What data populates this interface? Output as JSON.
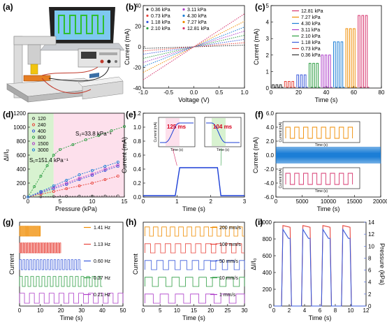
{
  "panels": {
    "a": {
      "label": "(a)"
    },
    "b": {
      "label": "(b)"
    },
    "c": {
      "label": "(c)"
    },
    "d": {
      "label": "(d)"
    },
    "e": {
      "label": "(e)"
    },
    "f": {
      "label": "(f)"
    },
    "g": {
      "label": "(g)"
    },
    "h": {
      "label": "(h)"
    },
    "i": {
      "label": "(i)"
    }
  },
  "chart_data": [
    {
      "id": "b",
      "type": "line",
      "xlabel": "Voltage (V)",
      "ylabel": "Current (mA)",
      "xlim": [
        -1.0,
        1.0
      ],
      "ylim": [
        -50,
        50
      ],
      "xticks": [
        "-1.0",
        "-0.5",
        "0.0",
        "0.5",
        "1.0"
      ],
      "yticks": [
        "-40",
        "-20",
        "0",
        "20",
        "40"
      ],
      "series": [
        {
          "name": "0.36 kPa",
          "color": "#333333",
          "slope": 2
        },
        {
          "name": "0.73 kPa",
          "color": "#e8453c",
          "slope": 5
        },
        {
          "name": "1.18 kPa",
          "color": "#3b5bdb",
          "slope": 9
        },
        {
          "name": "2.10 kPa",
          "color": "#2f9e44",
          "slope": 14
        },
        {
          "name": "3.11 kPa",
          "color": "#ae3ec9",
          "slope": 19
        },
        {
          "name": "4.30 kPa",
          "color": "#1c7ed6",
          "slope": 24
        },
        {
          "name": "7.27 kPa",
          "color": "#f08c00",
          "slope": 31
        },
        {
          "name": "12.81 kPa",
          "color": "#d6336c",
          "slope": 40
        }
      ]
    },
    {
      "id": "c",
      "type": "line",
      "xlabel": "Time (s)",
      "ylabel": "Current (mA)",
      "xlim": [
        0,
        90
      ],
      "ylim": [
        0,
        5
      ],
      "xticks": [
        "0",
        "20",
        "40",
        "60",
        "80"
      ],
      "yticks": [
        "0",
        "1",
        "2",
        "3",
        "4",
        "5"
      ],
      "series": [
        {
          "name": "0.36 kPa",
          "color": "#333333",
          "level": 0.2,
          "start": 1
        },
        {
          "name": "0.73 kPa",
          "color": "#e8453c",
          "level": 0.4,
          "start": 11
        },
        {
          "name": "1.18 kPa",
          "color": "#3b5bdb",
          "level": 0.8,
          "start": 21
        },
        {
          "name": "2.10 kPa",
          "color": "#2f9e44",
          "level": 1.5,
          "start": 31
        },
        {
          "name": "3.11 kPa",
          "color": "#ae3ec9",
          "level": 2.0,
          "start": 41
        },
        {
          "name": "4.30 kPa",
          "color": "#1c7ed6",
          "level": 2.8,
          "start": 51
        },
        {
          "name": "7.27 kPa",
          "color": "#f08c00",
          "level": 3.6,
          "start": 61
        },
        {
          "name": "12.81 kPa",
          "color": "#d6336c",
          "level": 4.4,
          "start": 71
        }
      ]
    },
    {
      "id": "d",
      "type": "scatter",
      "xlabel": "Pressure (kPa)",
      "ylabel": "ΔI/I₀",
      "xlim": [
        0,
        15
      ],
      "ylim": [
        0,
        1200
      ],
      "xticks": [
        "0",
        "5",
        "10",
        "15"
      ],
      "yticks": [
        "0",
        "200",
        "400",
        "600",
        "800",
        "1000",
        "1200"
      ],
      "annotations": {
        "s1": "S₁=151.4 kPa⁻¹",
        "s2": "S₂=33.8 kPa⁻¹"
      },
      "series": [
        {
          "name": "120",
          "color": "#555555",
          "x": [
            0,
            2,
            4,
            6,
            8,
            10,
            12,
            14
          ],
          "values": [
            0,
            5,
            8,
            10,
            12,
            13,
            14,
            15
          ]
        },
        {
          "name": "240",
          "color": "#e8453c",
          "x": [
            0,
            2,
            4,
            6,
            8,
            10,
            12,
            14
          ],
          "values": [
            0,
            40,
            80,
            120,
            160,
            200,
            250,
            300
          ]
        },
        {
          "name": "400",
          "color": "#3b5bdb",
          "x": [
            0,
            2,
            4,
            6,
            8,
            10,
            12,
            14
          ],
          "values": [
            0,
            60,
            120,
            180,
            250,
            310,
            380,
            440
          ]
        },
        {
          "name": "800",
          "color": "#2f9e44",
          "x": [
            0,
            1,
            2,
            3,
            4,
            5,
            7,
            9,
            11,
            13,
            15
          ],
          "values": [
            0,
            150,
            300,
            450,
            600,
            680,
            750,
            820,
            880,
            950,
            1010
          ]
        },
        {
          "name": "1500",
          "color": "#ae3ec9",
          "x": [
            0,
            2,
            4,
            6,
            8,
            10,
            12,
            14
          ],
          "values": [
            0,
            70,
            140,
            200,
            270,
            330,
            400,
            460
          ]
        },
        {
          "name": "3000",
          "color": "#1c7ed6",
          "x": [
            0,
            2,
            4,
            6,
            8,
            10,
            12,
            14
          ],
          "values": [
            0,
            80,
            160,
            240,
            320,
            380,
            440,
            500
          ]
        }
      ]
    },
    {
      "id": "e",
      "type": "line",
      "xlabel": "Time (s)",
      "ylabel": "Current (mA)",
      "xlim": [
        0,
        3
      ],
      "ylim": [
        0,
        1.2
      ],
      "xticks": [
        "0",
        "1",
        "2",
        "3"
      ],
      "yticks": [
        "0.0",
        "0.2",
        "0.4",
        "0.6",
        "0.8",
        "1.0",
        "1.2"
      ],
      "x": [
        0,
        0.95,
        1.08,
        2.2,
        2.3,
        3
      ],
      "values": [
        0.02,
        0.02,
        0.42,
        0.42,
        0.02,
        0.02
      ],
      "inset_left": {
        "label": "125 ms",
        "ylabel": "Current (mA)",
        "xlabel": "Time (s)"
      },
      "inset_right": {
        "label": "104 ms",
        "xlabel": "Time (s)"
      }
    },
    {
      "id": "f",
      "type": "line",
      "xlabel": "Time (s)",
      "ylabel": "Current (mA)",
      "xlim": [
        0,
        20000
      ],
      "ylim": [
        -6,
        6
      ],
      "xticks": [
        "0",
        "5000",
        "10000",
        "15000",
        "20000"
      ],
      "yticks": [
        "-6.0",
        "-4.0",
        "-2.0",
        "0.0",
        "2.0",
        "4.0",
        "6.0"
      ],
      "inset_top": {
        "ylabel": "Current (mA)",
        "xlabel": "Time (s)"
      },
      "inset_bottom": {
        "ylabel": "Current (mA)",
        "xlabel": "Time (s)"
      }
    },
    {
      "id": "g",
      "type": "line",
      "xlabel": "Time (s)",
      "ylabel": "Current",
      "xlim": [
        0,
        50
      ],
      "xticks": [
        "0",
        "10",
        "20",
        "30",
        "40",
        "50"
      ],
      "series": [
        {
          "name": "1.41 Hz",
          "color": "#f08c00",
          "freq": 1.41
        },
        {
          "name": "1.13 Hz",
          "color": "#e8453c",
          "freq": 1.13
        },
        {
          "name": "0.60 Hz",
          "color": "#3b5bdb",
          "freq": 0.6
        },
        {
          "name": "0.37 Hz",
          "color": "#2f9e44",
          "freq": 0.37
        },
        {
          "name": "0.21 Hz",
          "color": "#ae3ec9",
          "freq": 0.21
        }
      ]
    },
    {
      "id": "h",
      "type": "line",
      "xlabel": "Time (s)",
      "ylabel": "Current",
      "xlim": [
        0,
        30
      ],
      "xticks": [
        "0",
        "5",
        "10",
        "15",
        "20",
        "25",
        "30"
      ],
      "series": [
        {
          "name": "200 mm/s",
          "color": "#f08c00"
        },
        {
          "name": "100 mm/s",
          "color": "#e8453c"
        },
        {
          "name": "50 mm/s",
          "color": "#3b5bdb"
        },
        {
          "name": "10 mm/s",
          "color": "#2f9e44"
        },
        {
          "name": "1 mm/s",
          "color": "#ae3ec9"
        }
      ]
    },
    {
      "id": "i",
      "type": "line",
      "xlabel": "Time (s)",
      "ylabel": "ΔI/I₀",
      "y2label": "Pressure (kPa)",
      "xlim": [
        0,
        12
      ],
      "ylim": [
        0,
        1000
      ],
      "y2lim": [
        0,
        14
      ],
      "xticks": [
        "0",
        "2",
        "4",
        "6",
        "8",
        "10",
        "12"
      ],
      "yticks": [
        "0",
        "200",
        "400",
        "600",
        "800",
        "1000"
      ],
      "y2ticks": [
        "0",
        "2",
        "4",
        "6",
        "8",
        "10",
        "12",
        "14"
      ],
      "pulses": [
        [
          1.0,
          2.3
        ],
        [
          3.6,
          4.9
        ],
        [
          6.2,
          7.5
        ],
        [
          8.8,
          10.1
        ]
      ],
      "series": [
        {
          "name": "ΔI/I₀",
          "color": "#e8453c",
          "level": 960
        },
        {
          "name": "Pressure",
          "color": "#3b5bdb",
          "level": 12.8
        }
      ]
    }
  ]
}
